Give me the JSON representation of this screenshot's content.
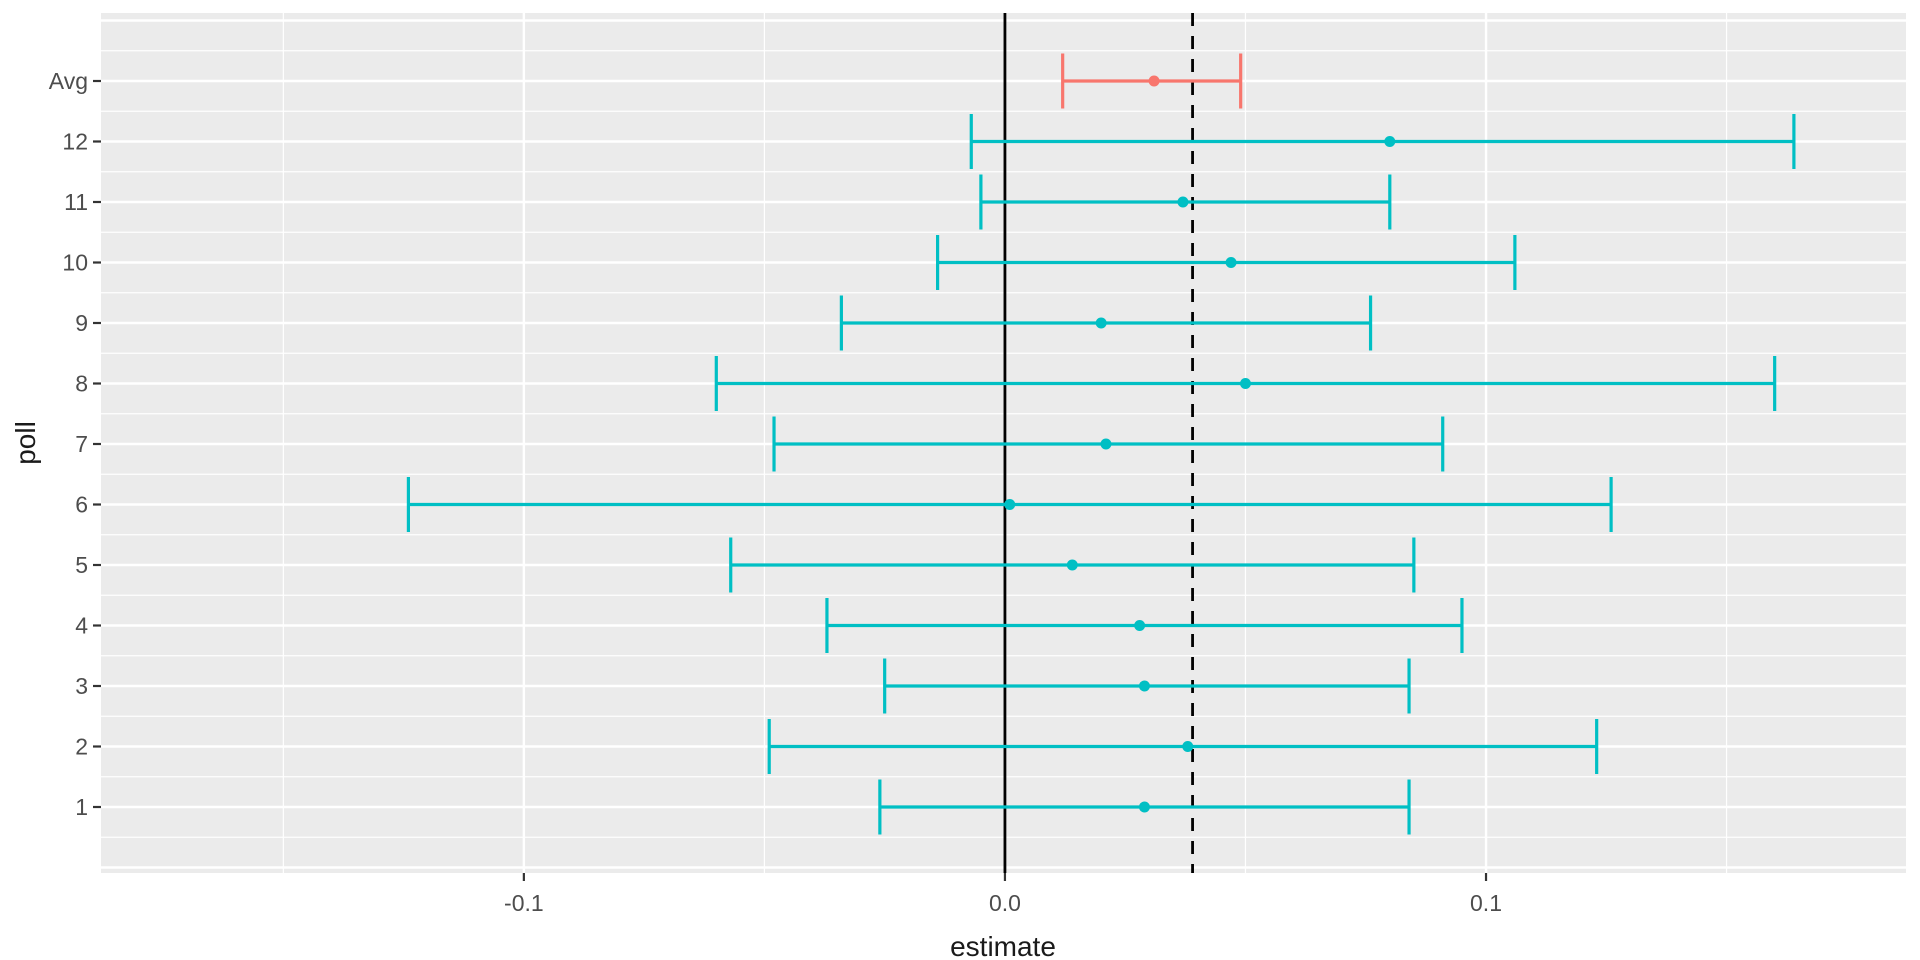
{
  "chart_data": {
    "type": "errorbar",
    "title": "",
    "xlabel": "estimate",
    "ylabel": "poll",
    "legend": "none",
    "grid": "on",
    "xlim": [
      -0.1879,
      0.1873
    ],
    "x_ticks": [
      {
        "value": -0.1,
        "label": "-0.1"
      },
      {
        "value": 0.0,
        "label": "0.0"
      },
      {
        "value": 0.1,
        "label": "0.1"
      }
    ],
    "x_minor_ticks": [
      -0.15,
      -0.05,
      0.05,
      0.15
    ],
    "reference_lines": [
      {
        "x": 0.0,
        "style": "solid",
        "meaning": "zero-line"
      },
      {
        "x": 0.039,
        "style": "dashed",
        "meaning": "reference-mean"
      }
    ],
    "rows": [
      {
        "label": "Avg",
        "estimate": 0.031,
        "lo": 0.012,
        "hi": 0.049,
        "series": "avg"
      },
      {
        "label": "12",
        "estimate": 0.08,
        "lo": -0.007,
        "hi": 0.164,
        "series": "poll"
      },
      {
        "label": "11",
        "estimate": 0.037,
        "lo": -0.005,
        "hi": 0.08,
        "series": "poll"
      },
      {
        "label": "10",
        "estimate": 0.047,
        "lo": -0.014,
        "hi": 0.106,
        "series": "poll"
      },
      {
        "label": "9",
        "estimate": 0.02,
        "lo": -0.034,
        "hi": 0.076,
        "series": "poll"
      },
      {
        "label": "8",
        "estimate": 0.05,
        "lo": -0.06,
        "hi": 0.16,
        "series": "poll"
      },
      {
        "label": "7",
        "estimate": 0.021,
        "lo": -0.048,
        "hi": 0.091,
        "series": "poll"
      },
      {
        "label": "6",
        "estimate": 0.001,
        "lo": -0.124,
        "hi": 0.126,
        "series": "poll"
      },
      {
        "label": "5",
        "estimate": 0.014,
        "lo": -0.057,
        "hi": 0.085,
        "series": "poll"
      },
      {
        "label": "4",
        "estimate": 0.028,
        "lo": -0.037,
        "hi": 0.095,
        "series": "poll"
      },
      {
        "label": "3",
        "estimate": 0.029,
        "lo": -0.025,
        "hi": 0.084,
        "series": "poll"
      },
      {
        "label": "2",
        "estimate": 0.038,
        "lo": -0.049,
        "hi": 0.123,
        "series": "poll"
      },
      {
        "label": "1",
        "estimate": 0.029,
        "lo": -0.026,
        "hi": 0.084,
        "series": "poll"
      }
    ],
    "colors": {
      "poll": "#00BFC4",
      "avg": "#F8766D",
      "panel": "#EBEBEB",
      "grid": "#FFFFFF",
      "axis_text": "#4D4D4D",
      "axis_title": "#1A1A1A",
      "reference": "#000000",
      "tick_marks": "#333333"
    }
  }
}
